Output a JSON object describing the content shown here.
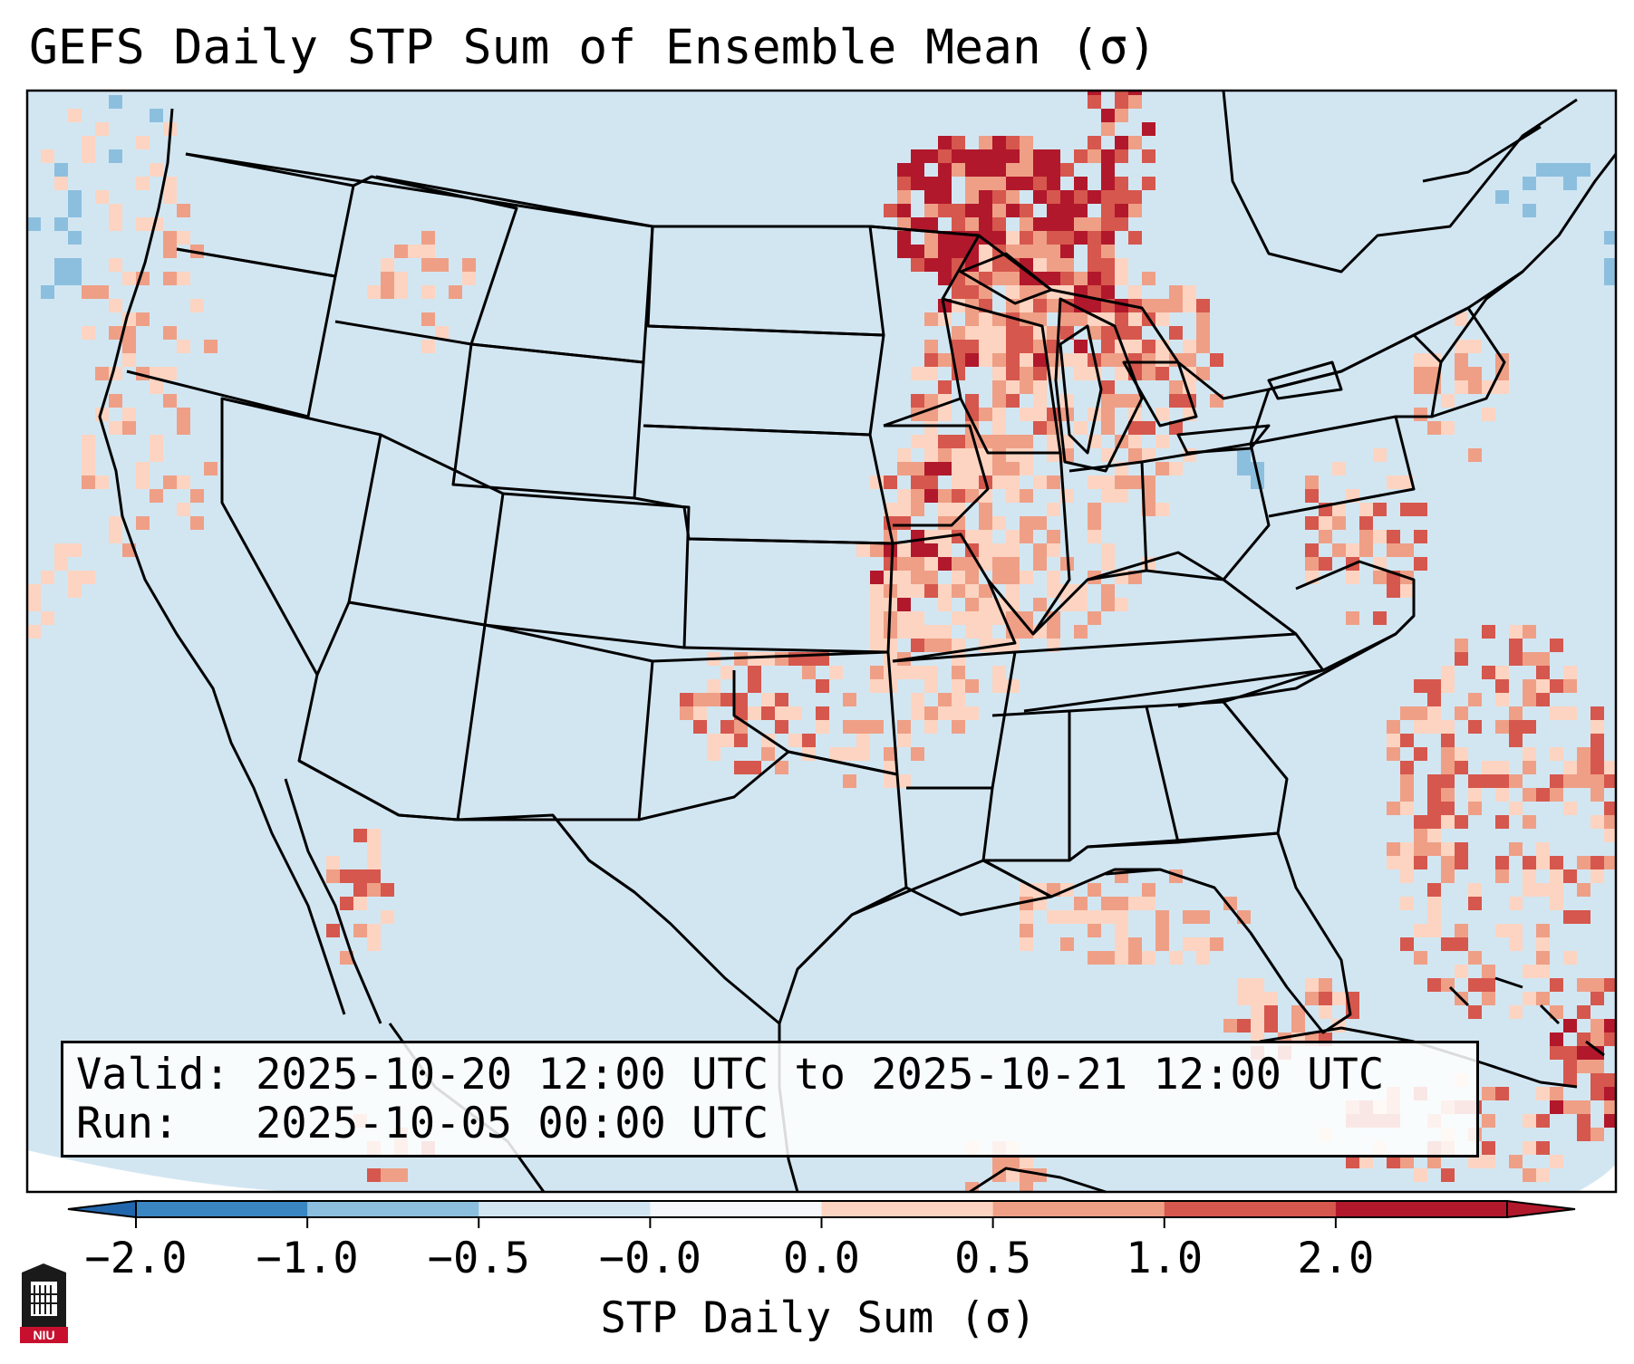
{
  "title": "GEFS Daily STP Sum of Ensemble Mean (σ)",
  "info": {
    "valid_label": "Valid:",
    "valid_value": "2025-10-20 12:00 UTC to 2025-10-21 12:00 UTC",
    "run_label": "Run:",
    "run_value": "2025-10-05 00:00 UTC"
  },
  "colorbar": {
    "label": "STP Daily Sum (σ)",
    "ticks": [
      "−2.0",
      "−1.0",
      "−0.5",
      "−0.0",
      "0.0",
      "0.5",
      "1.0",
      "2.0"
    ],
    "colors": [
      "#3a86c2",
      "#8cbfde",
      "#d2e6f2",
      "#f5f7fa",
      "#fcd4c1",
      "#ef9f86",
      "#d6574d",
      "#b2182b"
    ]
  },
  "map": {
    "background_color": "#d2e6f2",
    "outline_color": "#000000"
  },
  "logo": {
    "text": "NIU"
  }
}
